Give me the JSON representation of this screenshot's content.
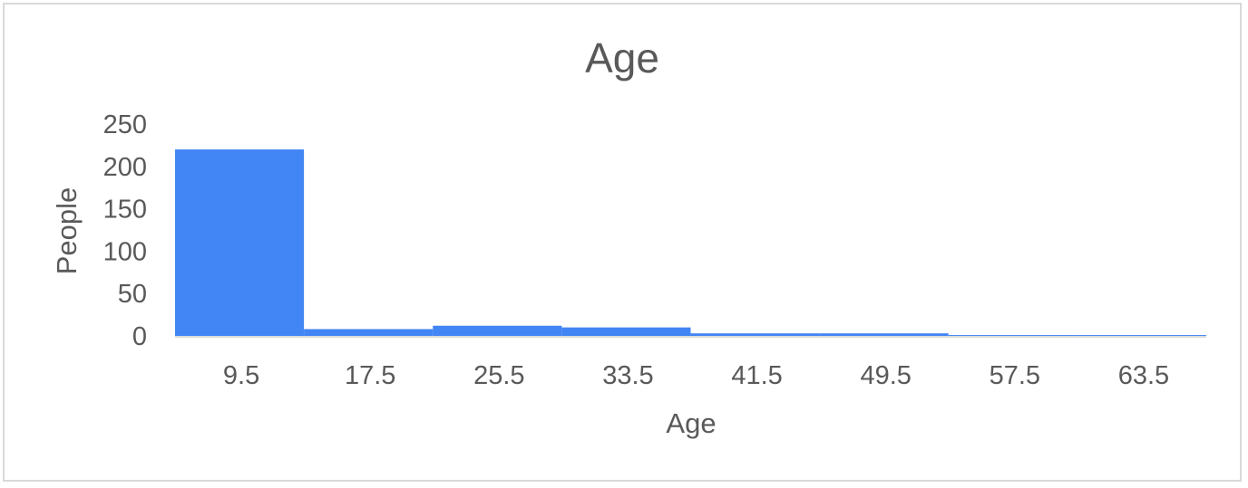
{
  "chart_data": {
    "type": "bar",
    "title": "Age",
    "xlabel": "Age",
    "ylabel": "People",
    "categories": [
      "9.5",
      "17.5",
      "25.5",
      "33.5",
      "41.5",
      "49.5",
      "57.5",
      "63.5"
    ],
    "values": [
      220,
      8,
      12,
      10,
      3,
      3,
      1,
      1
    ],
    "ylim": [
      0,
      250
    ],
    "yticks": [
      "250",
      "200",
      "150",
      "100",
      "50",
      "0"
    ],
    "grid": false,
    "legend": "none",
    "bar_color": "#4285f4",
    "axis_color": "#d9d9d9",
    "text_color": "#595959"
  }
}
